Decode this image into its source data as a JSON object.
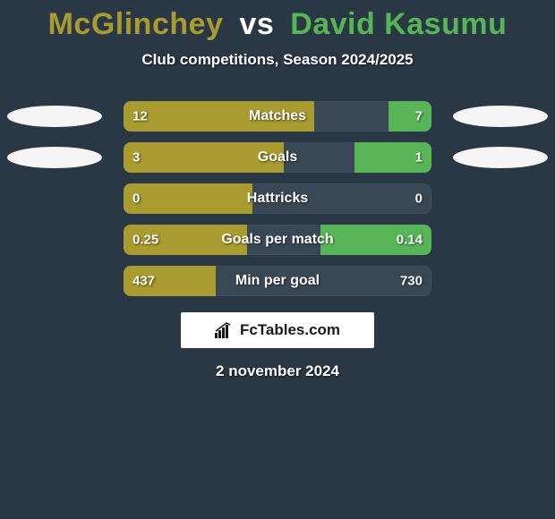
{
  "background_color": "#2a3744",
  "title": {
    "player1": "McGlinchey",
    "vs": "vs",
    "player2": "David Kasumu",
    "player1_color": "#a89b2f",
    "vs_color": "#ffffff",
    "player2_color": "#57b557",
    "fontsize": 34
  },
  "subtitle": "Club competitions, Season 2024/2025",
  "stats": {
    "bar_track_color": "#3a4856",
    "left_color": "#a89b2f",
    "right_color": "#57b557",
    "badge_color": "#f5f5f5",
    "label_fontsize": 16,
    "value_fontsize": 15,
    "rows": [
      {
        "label": "Matches",
        "left_val": "12",
        "right_val": "7",
        "left_pct": 62,
        "right_pct": 14,
        "show_badges": true
      },
      {
        "label": "Goals",
        "left_val": "3",
        "right_val": "1",
        "left_pct": 52,
        "right_pct": 25,
        "show_badges": true
      },
      {
        "label": "Hattricks",
        "left_val": "0",
        "right_val": "0",
        "left_pct": 42,
        "right_pct": 0,
        "show_badges": false
      },
      {
        "label": "Goals per match",
        "left_val": "0.25",
        "right_val": "0.14",
        "left_pct": 40,
        "right_pct": 36,
        "show_badges": false
      },
      {
        "label": "Min per goal",
        "left_val": "437",
        "right_val": "730",
        "left_pct": 30,
        "right_pct": 0,
        "show_badges": false
      }
    ]
  },
  "logo_text": "FcTables.com",
  "date": "2 november 2024"
}
